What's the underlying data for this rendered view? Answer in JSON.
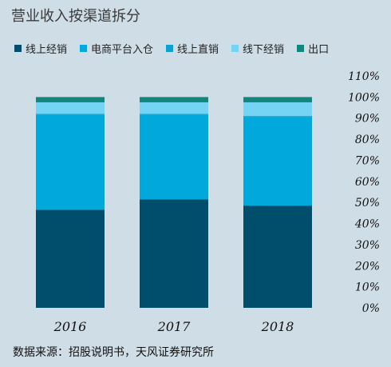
{
  "chart_data": {
    "type": "bar",
    "stacked": true,
    "title": "营业收入按渠道拆分",
    "categories": [
      "2016",
      "2017",
      "2018"
    ],
    "series": [
      {
        "name": "线上经销",
        "color": "#004e6c",
        "values": [
          46.5,
          51.5,
          48.5
        ]
      },
      {
        "name": "电商平台入仓",
        "color": "#00a8dc",
        "values": [
          45.0,
          40.0,
          42.0
        ]
      },
      {
        "name": "线上直销",
        "color": "#0e9fd3",
        "values": [
          0.5,
          0.5,
          0.5
        ]
      },
      {
        "name": "线下经销",
        "color": "#75d4f3",
        "values": [
          5.5,
          5.5,
          6.5
        ]
      },
      {
        "name": "出口",
        "color": "#12857d",
        "values": [
          2.5,
          2.5,
          2.5
        ]
      }
    ],
    "ylim": [
      0,
      110
    ],
    "yticks": [
      "0%",
      "10%",
      "20%",
      "30%",
      "40%",
      "50%",
      "60%",
      "70%",
      "80%",
      "90%",
      "100%",
      "110%"
    ],
    "grid": false,
    "legend_position": "top"
  },
  "source": "数据来源：招股说明书，天风证券研究所"
}
